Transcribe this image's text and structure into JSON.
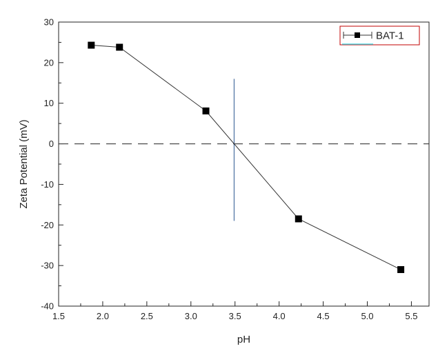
{
  "chart_data": {
    "type": "line",
    "title": "",
    "xlabel": "pH",
    "ylabel": "Zeta Potential (mV)",
    "xlim": [
      1.5,
      5.7
    ],
    "ylim": [
      -40,
      30
    ],
    "x_ticks": [
      1.5,
      2.0,
      2.5,
      3.0,
      3.5,
      4.0,
      4.5,
      5.0,
      5.5
    ],
    "y_ticks": [
      -40,
      -30,
      -20,
      -10,
      0,
      10,
      20,
      30
    ],
    "x_tick_labels": [
      "1.5",
      "2.0",
      "2.5",
      "3.0",
      "3.5",
      "4.0",
      "4.5",
      "5.0",
      "5.5"
    ],
    "y_tick_labels": [
      "-40",
      "-30",
      "-20",
      "-10",
      "0",
      "10",
      "20",
      "30"
    ],
    "series": [
      {
        "name": "BAT-1",
        "marker": "square",
        "color": "#000000",
        "x": [
          1.87,
          2.19,
          3.17,
          4.22,
          5.38
        ],
        "y": [
          24.3,
          23.8,
          8.1,
          -18.5,
          -31.0
        ]
      }
    ],
    "reference_lines": {
      "horizontal_dashed_y": 0,
      "vertical_line_x": 3.49,
      "vertical_line_y_range": [
        -19,
        16
      ],
      "vertical_line_color": "#4a6fa0"
    },
    "legend": {
      "position": "top-right",
      "entries": [
        "BAT-1"
      ]
    },
    "grid": false
  }
}
